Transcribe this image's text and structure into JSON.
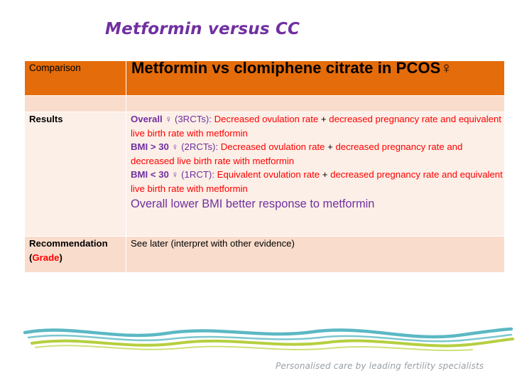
{
  "title": "Metformin versus CC",
  "header": {
    "label": "Comparison",
    "value": "Metformin vs clomiphene citrate in PCOS♀"
  },
  "results": {
    "label": "Results",
    "overall": {
      "key": "Overall",
      "sym": " ♀",
      "rcts": " (3RCTs): ",
      "t1": "Decreased ovulation rate",
      "plus": " + ",
      "t2": "decreased pregnancy rate and equivalent live birth rate with metformin"
    },
    "bmi_over": {
      "key": "BMI > 30",
      "sym": " ♀",
      "rcts": " (2RCTs): ",
      "t1": "Decreased ovulation rate",
      "plus": " + ",
      "t2": "decreased pregnancy rate and decreased live birth rate with metformin"
    },
    "bmi_under": {
      "key": "BMI < 30",
      "sym": " ♀",
      "rcts": " (1RCT): ",
      "t1": "Equivalent ovulation rate",
      "plus": " + ",
      "t2": "decreased pregnancy rate and equivalent live birth rate with metformin"
    },
    "summary": "Overall lower BMI better response to metformin"
  },
  "recommendation": {
    "label_main": "Recommendation",
    "label_open": "(",
    "label_grade": "Grade",
    "label_close": ")",
    "value": "See later (interpret with other evidence)"
  },
  "footer": {
    "tagline": "Personalised care by leading fertility specialists"
  },
  "colors": {
    "purple": "#7030a0",
    "header_orange": "#e46c0a",
    "row_light": "#fcefe7",
    "row_mid": "#f9dccb",
    "red": "#ff0000",
    "wave_teal": "#5bb8c4",
    "wave_green": "#b5cf3f"
  }
}
